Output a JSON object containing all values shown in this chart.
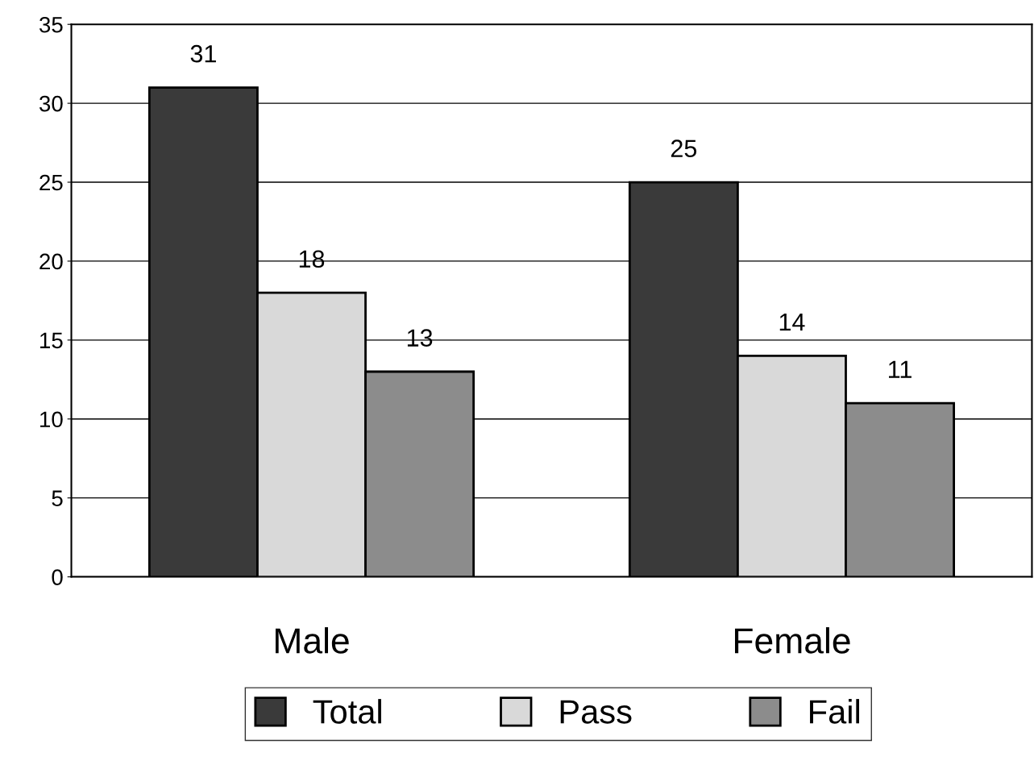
{
  "chart_data": {
    "type": "bar",
    "categories": [
      "Male",
      "Female"
    ],
    "series": [
      {
        "name": "Total",
        "color": "#3a3a3a",
        "values": [
          31,
          25
        ]
      },
      {
        "name": "Pass",
        "color": "#d9d9d9",
        "values": [
          18,
          14
        ]
      },
      {
        "name": "Fail",
        "color": "#8c8c8c",
        "values": [
          13,
          11
        ]
      }
    ],
    "ylim": [
      0,
      35
    ],
    "yticks": [
      0,
      5,
      10,
      15,
      20,
      25,
      30,
      35
    ],
    "grid": "y",
    "legend": "bottom",
    "data_labels": true
  }
}
